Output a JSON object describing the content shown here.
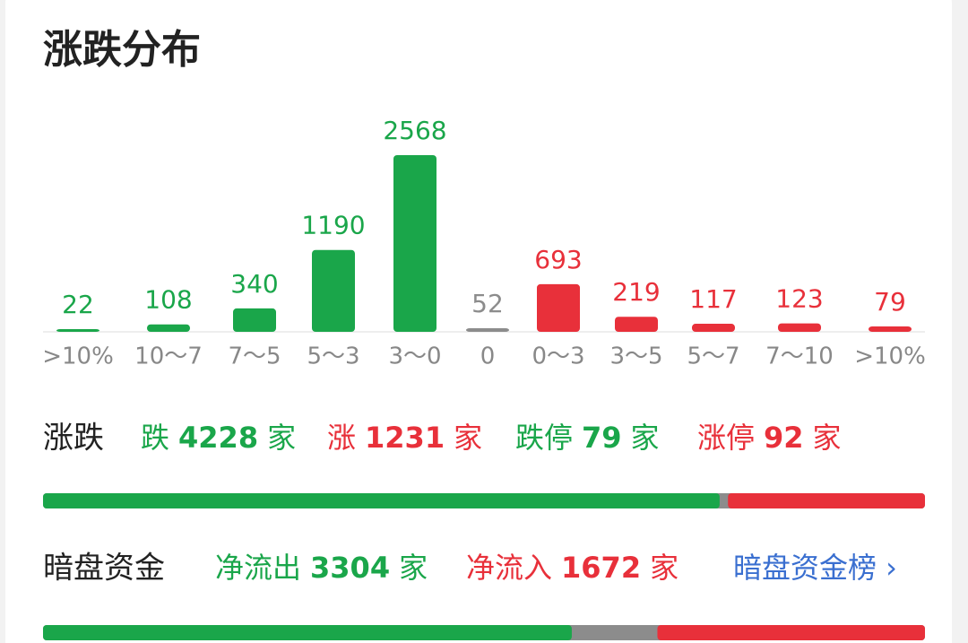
{
  "title": "涨跌分布",
  "chart_data": {
    "type": "bar",
    "categories": [
      ">10%",
      "10～7",
      "7～5",
      "5～3",
      "3～0",
      "0",
      "0～3",
      "3～5",
      "5～7",
      "7～10",
      ">10%"
    ],
    "values": [
      22,
      108,
      340,
      1190,
      2568,
      52,
      693,
      219,
      117,
      123,
      79
    ],
    "colors": [
      "#1aa64a",
      "#1aa64a",
      "#1aa64a",
      "#1aa64a",
      "#1aa64a",
      "#8c8c8c",
      "#e8303a",
      "#e8303a",
      "#e8303a",
      "#e8303a",
      "#e8303a"
    ]
  },
  "rise_fall": {
    "label": "涨跌",
    "items": [
      {
        "prefix": "跌",
        "value": 4228,
        "unit": "家",
        "color": "#1aa64a"
      },
      {
        "prefix": "涨",
        "value": 1231,
        "unit": "家",
        "color": "#e8303a"
      },
      {
        "prefix": "跌停",
        "value": 79,
        "unit": "家",
        "color": "#1aa64a"
      },
      {
        "prefix": "涨停",
        "value": 92,
        "unit": "家",
        "color": "#e8303a"
      }
    ]
  },
  "dark_pool": {
    "label": "暗盘资金",
    "items": [
      {
        "prefix": "净流出",
        "value": 3304,
        "unit": "家",
        "color": "#1aa64a"
      },
      {
        "prefix": "净流入",
        "value": 1672,
        "unit": "家",
        "color": "#e8303a"
      }
    ],
    "link": "暗盘资金榜 ›"
  }
}
